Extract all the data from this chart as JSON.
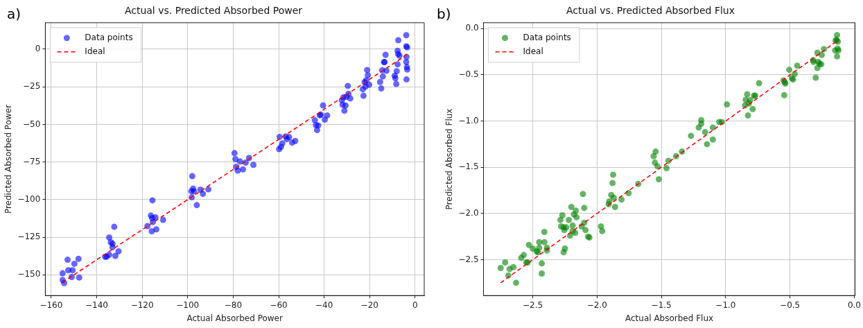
{
  "chart_data": [
    {
      "type": "scatter",
      "title": "Actual vs. Predicted Absorbed Power",
      "xlabel": "Actual Absorbed Power",
      "ylabel": "Predicted Absorbed Power",
      "annotations": [
        "a)"
      ],
      "xlim": [
        -162.6,
        4
      ],
      "ylim": [
        -163.8,
        17.6
      ],
      "xticks": [
        {
          "value": -160,
          "label": "−160"
        },
        {
          "value": -140,
          "label": "−140"
        },
        {
          "value": -120,
          "label": "−120"
        },
        {
          "value": -100,
          "label": "−100"
        },
        {
          "value": -80,
          "label": "−80"
        },
        {
          "value": -60,
          "label": "−60"
        },
        {
          "value": -40,
          "label": "−40"
        },
        {
          "value": -20,
          "label": "−20"
        },
        0
      ],
      "yticks": [
        {
          "value": -150,
          "label": "−150"
        },
        {
          "value": -125,
          "label": "−125"
        },
        {
          "value": -100,
          "label": "−100"
        },
        {
          "value": -75,
          "label": "−75"
        },
        {
          "value": -50,
          "label": "−50"
        },
        {
          "value": -25,
          "label": "−25"
        },
        0
      ],
      "grid": true,
      "legend": "top left",
      "series": [
        {
          "name": "Data points",
          "marker": "circle",
          "color": "#0000ff",
          "x": [
            -155,
            -155,
            -154.3,
            -152.8,
            -152.5,
            -151,
            -150.6,
            -149.8,
            -148,
            -147.7,
            -136.3,
            -135.6,
            -134.5,
            -134.5,
            -133.8,
            -133,
            -133.1,
            -132.3,
            -131.8,
            -130.4,
            -117.7,
            -116.2,
            -115.8,
            -115.5,
            -115.3,
            -115.6,
            -114.2,
            -113.8,
            -110.8,
            -98.2,
            -98,
            -98.4,
            -97.6,
            -97.2,
            -96,
            -94.4,
            -93.3,
            -90.9,
            -79.4,
            -79,
            -78.7,
            -78,
            -77,
            -75.7,
            -74.5,
            -73,
            -71.1,
            -59.8,
            -59.6,
            -59,
            -58.4,
            -56.9,
            -56.4,
            -55.4,
            -54.1,
            -52.7,
            -44.1,
            -43.6,
            -43.1,
            -42.6,
            -41.9,
            -41.5,
            -40.5,
            -39.7,
            -38.7,
            -32.2,
            -31.9,
            -31.5,
            -31.1,
            -30.6,
            -30.2,
            -29.6,
            -29.3,
            -28.5,
            -23,
            -22.7,
            -22.2,
            -21.8,
            -21.1,
            -20.8,
            -21.5,
            -20.2,
            -15.4,
            -14.9,
            -14.5,
            -14.2,
            -13.7,
            -13.4,
            -13,
            -12.6,
            -9,
            -8.7,
            -8.3,
            -8.1,
            -7.7,
            -7.7,
            -7.4,
            -7.5,
            -6.9,
            -3.9,
            -3.9,
            -3.5,
            -3.8,
            -3.9,
            -3.6,
            -3.5,
            -3.8
          ],
          "values": [
            -149,
            -153.5,
            -155.5,
            -140,
            -147,
            -151.5,
            -147,
            -142.7,
            -139.4,
            -151.8,
            -138,
            -138,
            -125.2,
            -136.7,
            -128.4,
            -129.4,
            -131.7,
            -118.1,
            -137.4,
            -134.4,
            -117.6,
            -110.6,
            -121.1,
            -100.5,
            -114.9,
            -112.3,
            -111.8,
            -119.8,
            -113.5,
            -98.5,
            -84.4,
            -94.4,
            -92.7,
            -94.5,
            -103.7,
            -93.4,
            -96.2,
            -93.2,
            -69.1,
            -73.1,
            -78.2,
            -80.7,
            -74.6,
            -79.9,
            -75.4,
            -72.3,
            -76.9,
            -66.4,
            -58.3,
            -65,
            -62.6,
            -58,
            -59.8,
            -58.5,
            -62.1,
            -61,
            -47.2,
            -50.5,
            -53.8,
            -50.7,
            -43.9,
            -43.5,
            -37.4,
            -46.8,
            -44,
            -33.9,
            -36.9,
            -31.9,
            -40.9,
            -37.5,
            -31.6,
            -24.4,
            -29.6,
            -32.7,
            -26.6,
            -30.9,
            -21.9,
            -24.8,
            -13.8,
            -17.3,
            -20.6,
            -23.6,
            -21.8,
            -26.1,
            -14,
            -18.1,
            -8.6,
            -8.6,
            -3.7,
            -14.3,
            -17.6,
            -19.3,
            -23.1,
            -14.6,
            -10.1,
            -1,
            6,
            -3.2,
            -4.3,
            9.3,
            2,
            1.2,
            -5.1,
            -8.5,
            -11.8,
            -13.5,
            -20.1
          ]
        },
        {
          "name": "Ideal",
          "type": "line",
          "marker": "none",
          "color": "#ff0000",
          "line_style": "dashed",
          "x": [
            -155.1,
            -3.5
          ],
          "values": [
            -155.1,
            -3.5
          ]
        }
      ]
    },
    {
      "type": "scatter",
      "title": "Actual vs. Predicted Absorbed Flux",
      "xlabel": "Actual Absorbed Flux",
      "ylabel": "Predicted Absorbed Flux",
      "annotations": [
        "b)"
      ],
      "xlim": [
        -2.883,
        0.006
      ],
      "ylim": [
        -2.888,
        0.064
      ],
      "xticks": [
        {
          "value": -2.5,
          "label": "−2.5"
        },
        {
          "value": -2,
          "label": "−2.0"
        },
        {
          "value": -1.5,
          "label": "−1.5"
        },
        {
          "value": -1,
          "label": "−1.0"
        },
        {
          "value": -0.5,
          "label": "−0.5"
        },
        {
          "value": 0,
          "label": "0.0"
        }
      ],
      "yticks": [
        {
          "value": -2.5,
          "label": "−2.5"
        },
        {
          "value": -2,
          "label": "−2.0"
        },
        {
          "value": -1.5,
          "label": "−1.5"
        },
        {
          "value": -1,
          "label": "−1.0"
        },
        {
          "value": -0.5,
          "label": "−0.5"
        },
        {
          "value": 0,
          "label": "0.0"
        }
      ],
      "grid": true,
      "legend": "top left",
      "series": [
        {
          "name": "Data points",
          "marker": "circle",
          "color": "#008000",
          "x": [
            -2.75,
            -2.715,
            -2.69,
            -2.68,
            -2.65,
            -2.63,
            -2.59,
            -2.57,
            -2.55,
            -2.54,
            -2.53,
            -2.5,
            -2.47,
            -2.46,
            -2.45,
            -2.45,
            -2.43,
            -2.43,
            -2.41,
            -2.41,
            -2.39,
            -2.39,
            -2.285,
            -2.28,
            -2.27,
            -2.26,
            -2.26,
            -2.255,
            -2.25,
            -2.24,
            -2.22,
            -2.21,
            -2.2,
            -2.19,
            -2.19,
            -2.18,
            -2.17,
            -2.165,
            -2.16,
            -2.12,
            -2.11,
            -2.1,
            -2.1,
            -2.09,
            -2.07,
            -2.06,
            -1.97,
            -1.96,
            -1.91,
            -1.905,
            -1.89,
            -1.88,
            -1.875,
            -1.87,
            -1.86,
            -1.81,
            -1.755,
            -1.68,
            -1.56,
            -1.55,
            -1.545,
            -1.53,
            -1.52,
            -1.46,
            -1.445,
            -1.386,
            -1.34,
            -1.27,
            -1.21,
            -1.19,
            -1.19,
            -1.16,
            -1.145,
            -1.1,
            -1.1,
            -1.05,
            -1.03,
            -0.99,
            -0.85,
            -0.845,
            -0.833,
            -0.827,
            -0.82,
            -0.81,
            -0.79,
            -0.78,
            -0.77,
            -0.74,
            -0.55,
            -0.545,
            -0.54,
            -0.536,
            -0.506,
            -0.485,
            -0.476,
            -0.463,
            -0.444,
            -0.32,
            -0.317,
            -0.3,
            -0.287,
            -0.287,
            -0.28,
            -0.27,
            -0.257,
            -0.253,
            -0.236,
            -0.149,
            -0.145,
            -0.138,
            -0.134,
            -0.134,
            -0.13,
            -0.123,
            -0.128
          ],
          "values": [
            -2.59,
            -2.53,
            -2.67,
            -2.6,
            -2.58,
            -2.75,
            -2.48,
            -2.45,
            -2.53,
            -2.53,
            -2.34,
            -2.38,
            -2.41,
            -2.42,
            -2.31,
            -2.37,
            -2.54,
            -2.65,
            -2.2,
            -2.31,
            -2.37,
            -2.4,
            -2.07,
            -2.14,
            -2.02,
            -2.15,
            -2.42,
            -2.18,
            -2.38,
            -2.15,
            -2.07,
            -2.24,
            -1.93,
            -2.13,
            -2.19,
            -2.01,
            -2.21,
            -1.97,
            -2.04,
            -2.14,
            -1.79,
            -1.94,
            -2.1,
            -2.18,
            -2.25,
            -2.26,
            -2.14,
            -2.19,
            -1.9,
            -1.87,
            -1.8,
            -1.67,
            -1.58,
            -1.83,
            -1.93,
            -1.85,
            -1.78,
            -1.68,
            -1.38,
            -1.45,
            -1.33,
            -1.49,
            -1.63,
            -1.51,
            -1.43,
            -1.38,
            -1.33,
            -1.16,
            -1.07,
            -1.03,
            -0.99,
            -1.12,
            -1.25,
            -1.2,
            -1.07,
            -1.01,
            -1.01,
            -0.82,
            -0.83,
            -0.77,
            -0.71,
            -0.94,
            -0.81,
            -0.775,
            -0.87,
            -0.725,
            -0.725,
            -0.59,
            -0.56,
            -0.72,
            -0.58,
            -0.595,
            -0.445,
            -0.535,
            -0.55,
            -0.49,
            -0.4,
            -0.34,
            -0.36,
            -0.53,
            -0.26,
            -0.425,
            -0.36,
            -0.38,
            -0.385,
            -0.285,
            -0.22,
            -0.236,
            -0.128,
            -0.122,
            -0.07,
            -0.3,
            -0.215,
            -0.236,
            -0.14
          ]
        },
        {
          "name": "Ideal",
          "type": "line",
          "marker": "none",
          "color": "#ff0000",
          "line_style": "dashed",
          "x": [
            -2.75,
            -0.12
          ],
          "values": [
            -2.75,
            -0.12
          ]
        }
      ]
    }
  ]
}
